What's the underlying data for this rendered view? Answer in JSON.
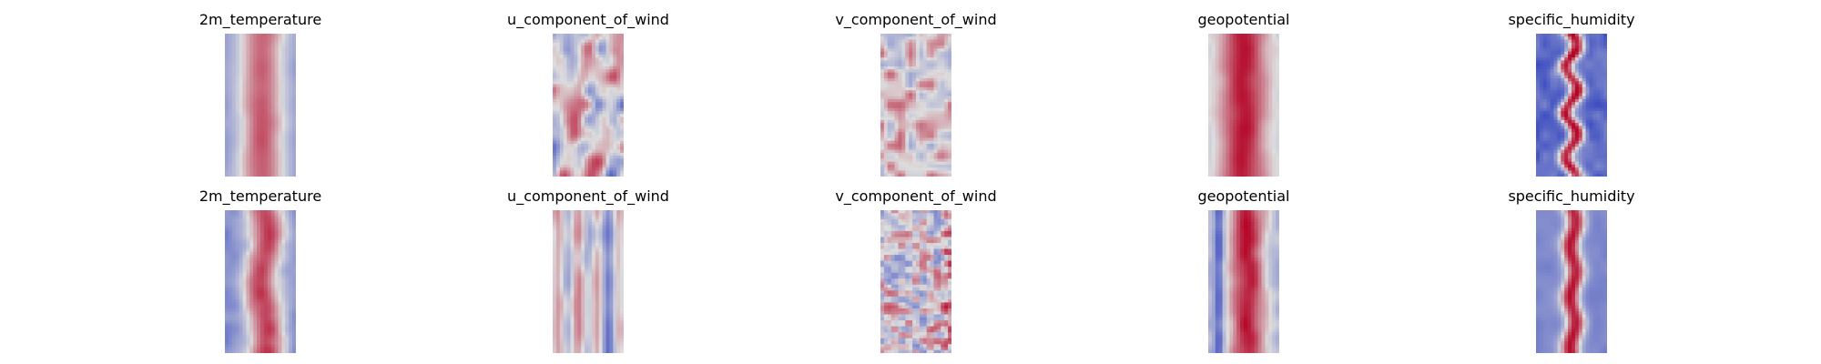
{
  "figure": {
    "colormap": "coolwarm",
    "colormap_colors": {
      "low": "#3b4cc0",
      "mid": "#dddddd",
      "high": "#b40426"
    },
    "rows": [
      {
        "panels": [
          {
            "title": "2m_temperature",
            "pattern": "temperature-top"
          },
          {
            "title": "u_component_of_wind",
            "pattern": "uwind-top"
          },
          {
            "title": "v_component_of_wind",
            "pattern": "vwind-top"
          },
          {
            "title": "geopotential",
            "pattern": "geo-top"
          },
          {
            "title": "specific_humidity",
            "pattern": "humidity-top"
          }
        ]
      },
      {
        "panels": [
          {
            "title": "2m_temperature",
            "pattern": "temperature-bottom"
          },
          {
            "title": "u_component_of_wind",
            "pattern": "uwind-bottom"
          },
          {
            "title": "v_component_of_wind",
            "pattern": "vwind-bottom"
          },
          {
            "title": "geopotential",
            "pattern": "geo-bottom"
          },
          {
            "title": "specific_humidity",
            "pattern": "humidity-bottom"
          }
        ]
      }
    ]
  }
}
